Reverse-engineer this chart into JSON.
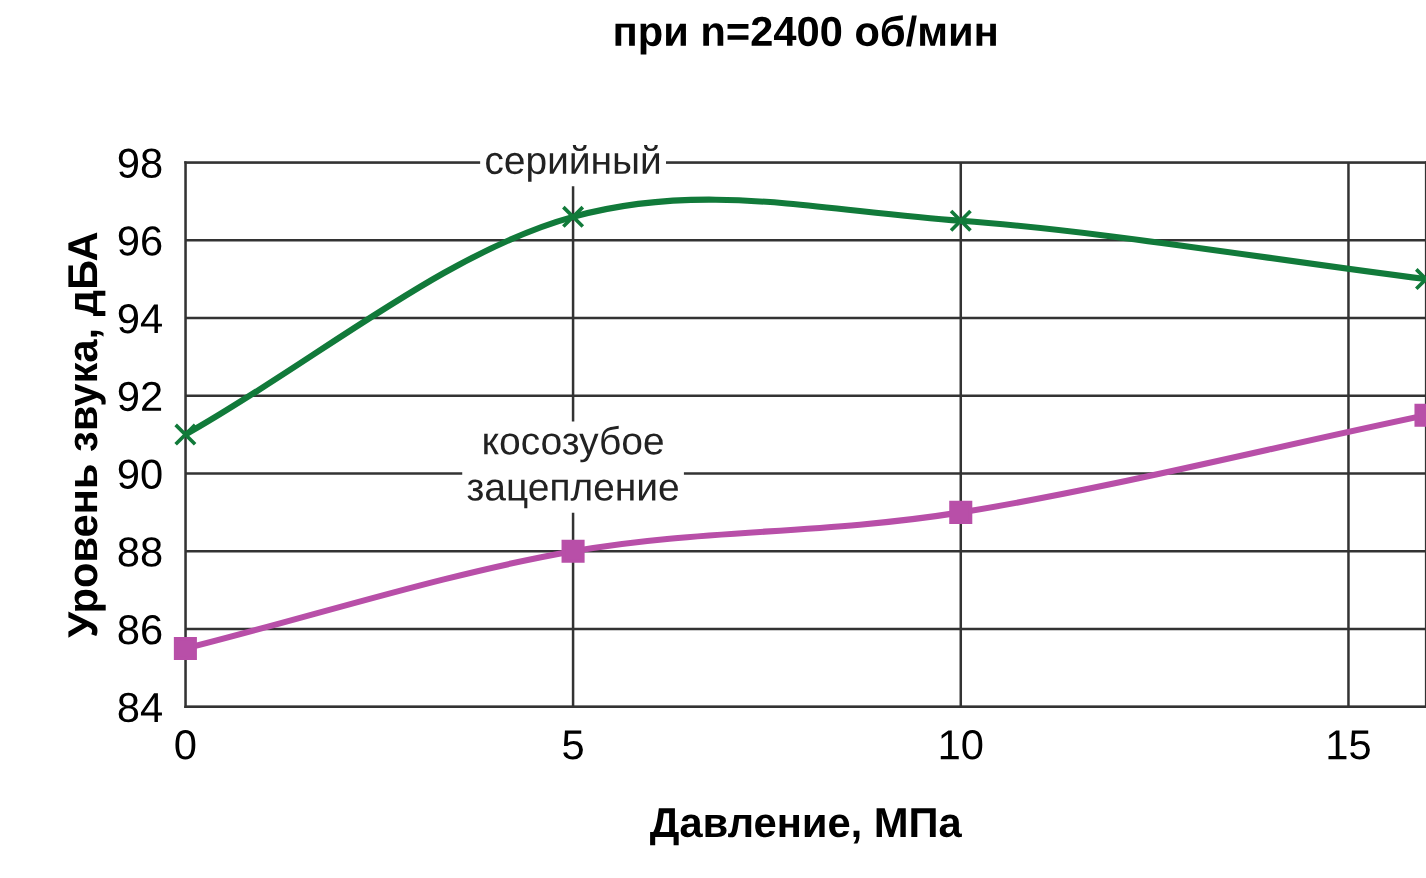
{
  "chart_data": {
    "type": "line",
    "title": "при n=2400 об/мин",
    "xlabel": "Давление, МПа",
    "ylabel": "Уровень звука, дБА",
    "x": [
      0,
      5,
      10,
      16
    ],
    "series": [
      {
        "name": "серийный",
        "color": "#117a3a",
        "marker": "cross",
        "values": [
          91,
          96.6,
          96.5,
          95
        ]
      },
      {
        "name": "косозубое\nзацепление",
        "color": "#b84fa8",
        "marker": "square",
        "values": [
          85.5,
          88,
          89,
          91.5
        ]
      }
    ],
    "xlim": [
      0,
      16
    ],
    "xticks": [
      0,
      5,
      10,
      15
    ],
    "ylim": [
      84,
      98
    ],
    "yticks": [
      84,
      86,
      88,
      90,
      92,
      94,
      96,
      98
    ],
    "grid": true,
    "legend": false,
    "line_style": "solid"
  }
}
